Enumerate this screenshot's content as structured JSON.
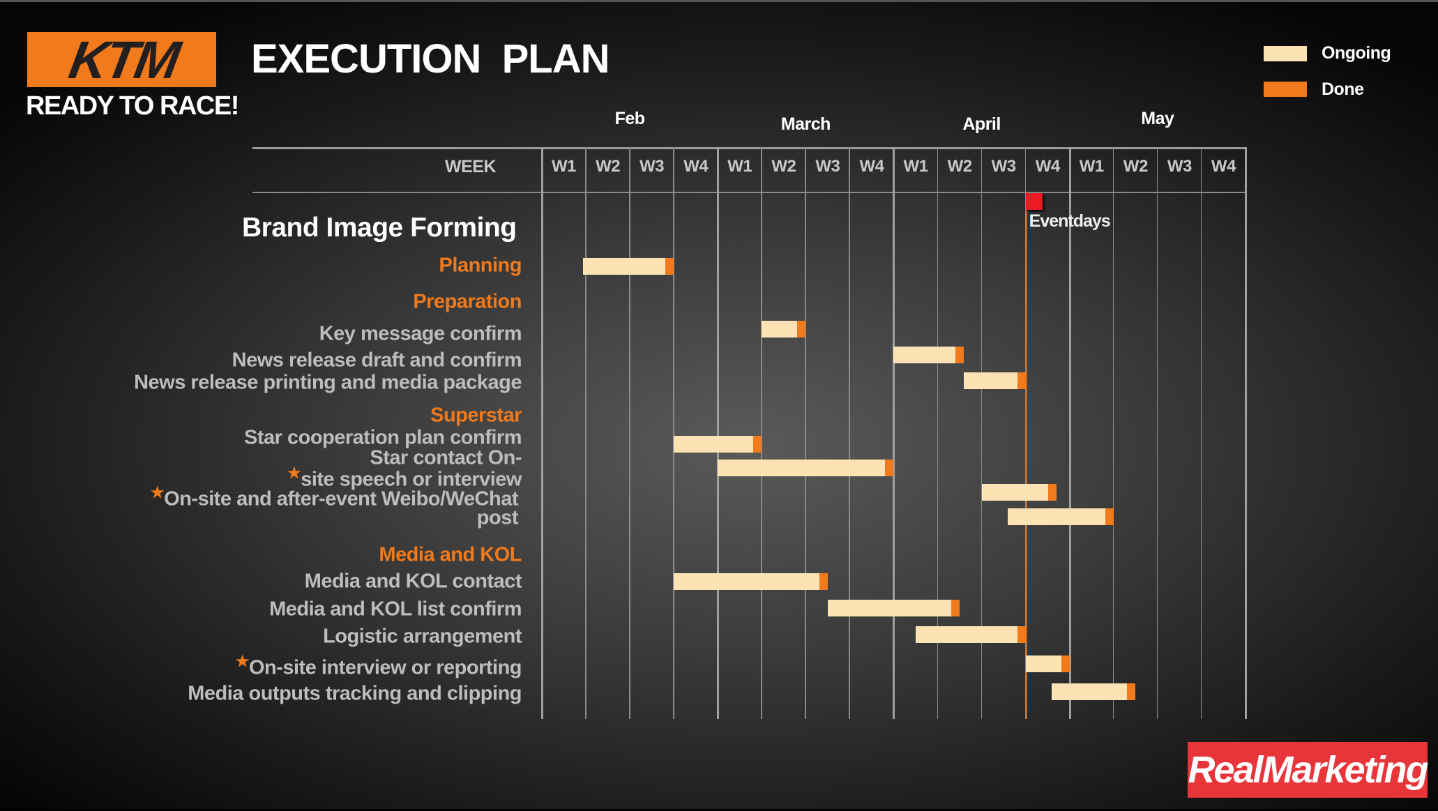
{
  "header": {
    "title": "EXECUTION  PLAN",
    "logo_text": "KTM",
    "tagline": "READY TO RACE!",
    "brand_footer": "RealMarketing"
  },
  "legend": [
    {
      "label": "Ongoing",
      "color": "#fde3b3"
    },
    {
      "label": "Done",
      "color": "#f07a1c"
    }
  ],
  "colors": {
    "ongoing": "#fde3b3",
    "done": "#f07a1c",
    "event": "#ed1c24",
    "footer": "#e8353a"
  },
  "chart_data": {
    "type": "gantt",
    "axis_header": "WEEK",
    "months": [
      {
        "name": "Feb",
        "weeks": [
          "W1",
          "W2",
          "W3",
          "W4"
        ]
      },
      {
        "name": "March",
        "weeks": [
          "W1",
          "W2",
          "W3",
          "W4"
        ]
      },
      {
        "name": "April",
        "weeks": [
          "W1",
          "W2",
          "W3",
          "W4"
        ]
      },
      {
        "name": "May",
        "weeks": [
          "W1",
          "W2",
          "W3",
          "W4"
        ]
      }
    ],
    "section_title": "Brand Image Forming",
    "event": {
      "label": "Eventdays",
      "week": 11
    },
    "groups": [
      {
        "name": "Planning",
        "tasks": [
          {
            "lines": [
              "Planning"
            ],
            "start": 0.94,
            "end": 3.0,
            "is_category": true
          }
        ]
      },
      {
        "name": "Preparation",
        "tasks": [
          {
            "lines": [
              "Key message confirm"
            ],
            "start": 5.0,
            "end": 6.0
          },
          {
            "lines": [
              "News release draft and confirm"
            ],
            "start": 8.0,
            "end": 9.6
          },
          {
            "lines": [
              "News release printing and media package"
            ],
            "start": 9.6,
            "end": 11.0
          }
        ]
      },
      {
        "name": "Superstar",
        "tasks": [
          {
            "lines": [
              "Star cooperation plan confirm"
            ],
            "start": 3.0,
            "end": 5.0
          },
          {
            "lines": [
              "Star contact  On-"
            ],
            "start": 4.0,
            "end": 8.0
          },
          {
            "lines": [
              "site speech or interview"
            ],
            "star": true,
            "start": 10.0,
            "end": 11.7
          },
          {
            "lines": [
              "On-site and after-event Weibo/WeChat",
              "post"
            ],
            "star": true,
            "start": 10.6,
            "end": 13.0
          }
        ]
      },
      {
        "name": "Media and KOL",
        "tasks": [
          {
            "lines": [
              "Media and KOL contact"
            ],
            "start": 3.0,
            "end": 6.5
          },
          {
            "lines": [
              "Media and KOL list confirm"
            ],
            "start": 6.5,
            "end": 9.5
          },
          {
            "lines": [
              "Logistic arrangement"
            ],
            "start": 8.5,
            "end": 11.0
          },
          {
            "lines": [
              "On-site interview or reporting"
            ],
            "star": true,
            "start": 11.0,
            "end": 12.0
          },
          {
            "lines": [
              "Media outputs tracking and clipping"
            ],
            "start": 11.6,
            "end": 13.5
          }
        ]
      }
    ]
  }
}
